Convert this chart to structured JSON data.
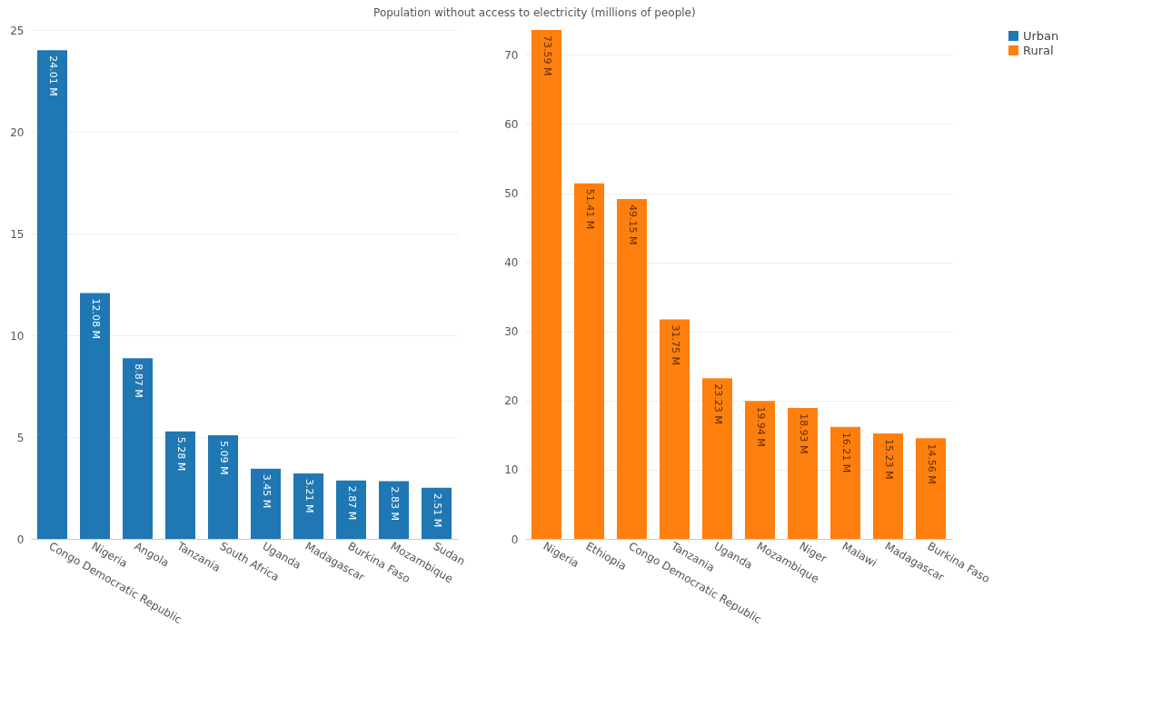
{
  "chart_data": [
    {
      "type": "bar",
      "title": "Population without access to electricity (millions of people)",
      "categories": [
        "Congo Democratic Republic",
        "Nigeria",
        "Angola",
        "Tanzania",
        "South Africa",
        "Uganda",
        "Madagascar",
        "Burkina Faso",
        "Mozambique",
        "Sudan"
      ],
      "series": [
        {
          "name": "Urban",
          "color": "#1f77b4",
          "values": [
            24.01,
            12.08,
            8.87,
            5.28,
            5.09,
            3.45,
            3.21,
            2.87,
            2.83,
            2.51
          ],
          "value_labels": [
            "24.01 M",
            "12.08 M",
            "8.87 M",
            "5.28 M",
            "5.09 M",
            "3.45 M",
            "3.21 M",
            "2.87 M",
            "2.83 M",
            "2.51 M"
          ]
        }
      ],
      "ylim": [
        0,
        25
      ],
      "yticks": [
        0,
        5,
        10,
        15,
        20,
        25
      ],
      "grid": "y",
      "legend": "top right"
    },
    {
      "type": "bar",
      "categories": [
        "Nigeria",
        "Ethiopia",
        "Congo Democratic Republic",
        "Tanzania",
        "Uganda",
        "Mozambique",
        "Niger",
        "Malawi",
        "Madagascar",
        "Burkina Faso"
      ],
      "series": [
        {
          "name": "Rural",
          "color": "#ff7f0e",
          "values": [
            73.59,
            51.41,
            49.15,
            31.75,
            23.23,
            19.94,
            18.93,
            16.21,
            15.23,
            14.56
          ],
          "value_labels": [
            "73.59 M",
            "51.41 M",
            "49.15 M",
            "31.75 M",
            "23.23 M",
            "19.94 M",
            "18.93 M",
            "16.21 M",
            "15.23 M",
            "14.56 M"
          ]
        }
      ],
      "ylim": [
        0,
        73.59
      ],
      "yticks": [
        0,
        10,
        20,
        30,
        40,
        50,
        60,
        70
      ],
      "grid": "y",
      "legend": "top right"
    }
  ]
}
